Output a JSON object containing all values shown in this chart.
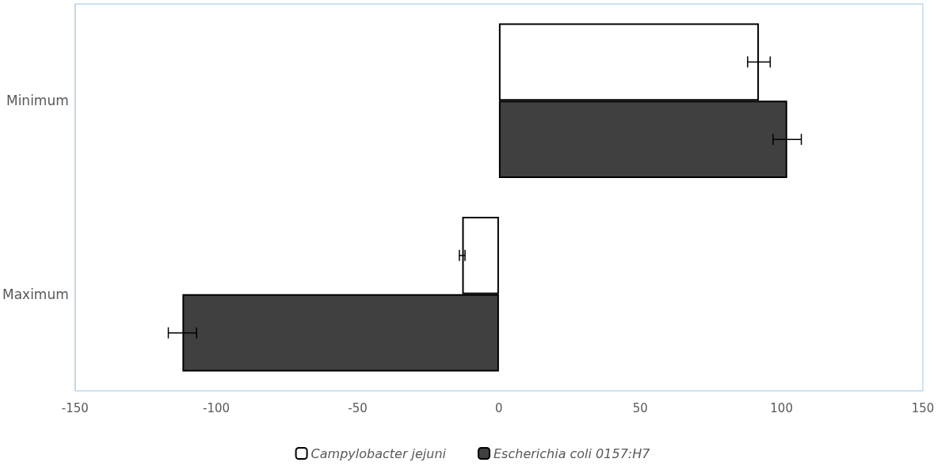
{
  "chart_data": {
    "type": "bar",
    "orientation": "horizontal",
    "categories": [
      "Minimum",
      "Maximum"
    ],
    "series": [
      {
        "name": "Campylobacter jejuni",
        "color": "#ffffff",
        "values": [
          92,
          -13
        ],
        "errors": [
          4,
          1
        ]
      },
      {
        "name": "Escherichia coli 0157:H7",
        "color": "#404040",
        "values": [
          102,
          -112
        ],
        "errors": [
          5,
          5
        ]
      }
    ],
    "xlim": [
      -150,
      150
    ],
    "xticks": [
      -150,
      -100,
      -50,
      0,
      50,
      100,
      150
    ],
    "grid": false,
    "legend": "bottom"
  }
}
